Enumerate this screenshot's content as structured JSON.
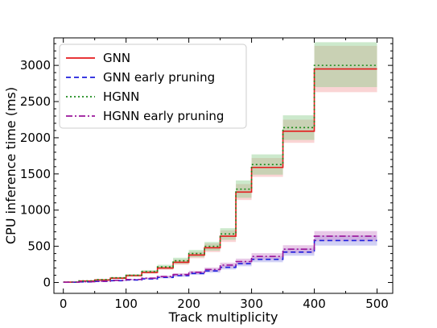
{
  "chart_data": {
    "type": "line",
    "xlabel": "Track multiplicity",
    "ylabel": "CPU inference time (ms)",
    "xlim": [
      -15,
      525
    ],
    "ylim": [
      -150,
      3380
    ],
    "xticks": [
      0,
      100,
      200,
      300,
      400,
      500
    ],
    "yticks": [
      0,
      500,
      1000,
      1500,
      2000,
      2500,
      3000
    ],
    "grid": false,
    "legend_position": "top-left",
    "bin_edges": [
      0,
      25,
      50,
      75,
      100,
      125,
      150,
      175,
      200,
      225,
      250,
      275,
      300,
      350,
      400,
      500
    ],
    "series": [
      {
        "name": "GNN",
        "style": "solid",
        "color": "#e41a1c",
        "band_color": "#f4a0a0",
        "values": [
          5,
          20,
          35,
          60,
          95,
          140,
          200,
          280,
          380,
          480,
          640,
          1250,
          1590,
          2090,
          2950
        ],
        "lower": [
          4,
          16,
          28,
          50,
          80,
          120,
          175,
          245,
          335,
          420,
          560,
          1140,
          1460,
          1930,
          2630
        ],
        "upper": [
          6,
          24,
          42,
          70,
          110,
          160,
          225,
          315,
          425,
          540,
          720,
          1360,
          1720,
          2250,
          3270
        ]
      },
      {
        "name": "GNN early pruning",
        "style": "dashed",
        "color": "#1f1fdd",
        "band_color": "#9a9ae8",
        "values": [
          3,
          8,
          15,
          25,
          35,
          50,
          70,
          95,
          125,
          160,
          210,
          260,
          320,
          420,
          580
        ],
        "lower": [
          2,
          6,
          12,
          20,
          28,
          40,
          57,
          78,
          105,
          135,
          180,
          225,
          280,
          370,
          510
        ],
        "upper": [
          4,
          10,
          18,
          30,
          42,
          60,
          83,
          112,
          145,
          185,
          240,
          295,
          360,
          470,
          650
        ]
      },
      {
        "name": "HGNN",
        "style": "dotted",
        "color": "#1a8a1a",
        "band_color": "#8fcf8f",
        "values": [
          6,
          22,
          40,
          65,
          100,
          150,
          215,
          300,
          400,
          500,
          670,
          1290,
          1630,
          2140,
          3000
        ],
        "lower": [
          5,
          18,
          33,
          54,
          85,
          128,
          185,
          258,
          350,
          440,
          590,
          1170,
          1490,
          1970,
          2700
        ],
        "upper": [
          7,
          26,
          47,
          76,
          115,
          172,
          245,
          342,
          450,
          560,
          750,
          1410,
          1770,
          2310,
          3320
        ]
      },
      {
        "name": "HGNN early pruning",
        "style": "dashdot",
        "color": "#9b169b",
        "band_color": "#cc88cc",
        "values": [
          4,
          10,
          18,
          30,
          42,
          60,
          82,
          110,
          140,
          180,
          240,
          290,
          360,
          460,
          640
        ],
        "lower": [
          3,
          8,
          14,
          24,
          34,
          49,
          68,
          92,
          118,
          153,
          206,
          250,
          315,
          405,
          570
        ],
        "upper": [
          5,
          12,
          22,
          36,
          50,
          71,
          96,
          128,
          162,
          207,
          274,
          330,
          405,
          515,
          710
        ]
      }
    ]
  }
}
